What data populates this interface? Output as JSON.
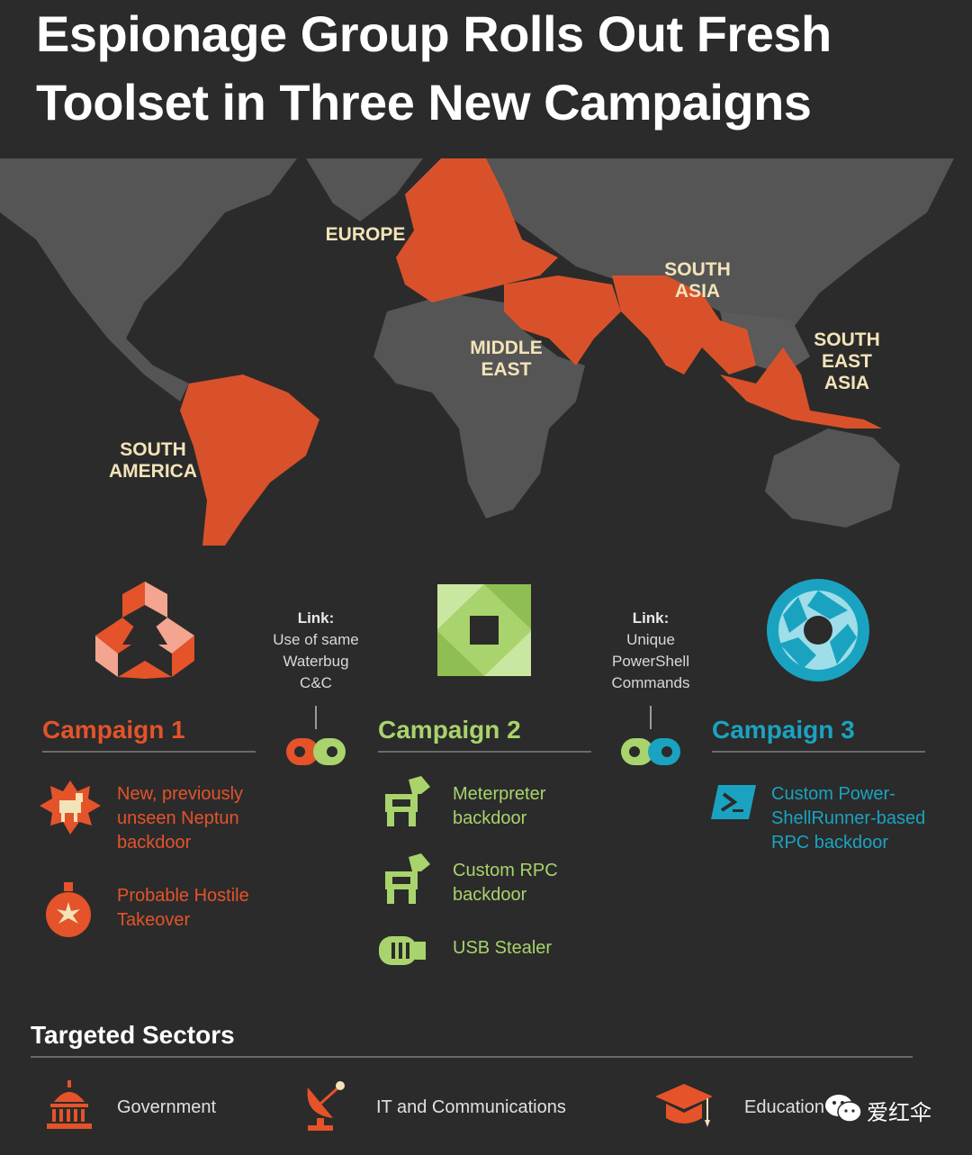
{
  "title_line1": "Espionage Group Rolls Out Fresh",
  "title_line2": "Toolset in Three New Campaigns",
  "regions": {
    "europe": "EUROPE",
    "south_asia_1": "SOUTH",
    "south_asia_2": "ASIA",
    "middle_east_1": "MIDDLE",
    "middle_east_2": "EAST",
    "se_asia_1": "SOUTH",
    "se_asia_2": "EAST",
    "se_asia_3": "ASIA",
    "south_america_1": "SOUTH",
    "south_america_2": "AMERICA"
  },
  "links": [
    {
      "heading": "Link:",
      "lines": [
        "Use of same",
        "Waterbug",
        "C&C"
      ]
    },
    {
      "heading": "Link:",
      "lines": [
        "Unique",
        "PowerShell",
        "Commands"
      ]
    }
  ],
  "campaigns": [
    {
      "title": "Campaign 1",
      "items": [
        {
          "lines": [
            "New, previously",
            "unseen Neptun",
            "backdoor"
          ],
          "icon": "trojan-horse-icon"
        },
        {
          "lines": [
            "Probable Hostile",
            "Takeover"
          ],
          "icon": "bomb-icon"
        }
      ]
    },
    {
      "title": "Campaign 2",
      "items": [
        {
          "lines": [
            "Meterpreter",
            "backdoor"
          ],
          "icon": "trojan-horse-icon"
        },
        {
          "lines": [
            "Custom RPC",
            "backdoor"
          ],
          "icon": "trojan-horse-icon"
        },
        {
          "lines": [
            "USB Stealer"
          ],
          "icon": "usb-icon"
        }
      ]
    },
    {
      "title": "Campaign 3",
      "items": [
        {
          "lines": [
            "Custom Power-",
            "ShellRunner-based",
            "RPC backdoor"
          ],
          "icon": "powershell-icon"
        }
      ]
    }
  ],
  "sectors_title": "Targeted Sectors",
  "sectors": [
    "Government",
    "IT and Communications",
    "Education"
  ],
  "watermark": "爱红伞",
  "colors": {
    "background": "#2b2b2b",
    "land": "#555555",
    "targeted": "#d9512a",
    "campaign1": "#e4532a",
    "campaign2": "#a9d36c",
    "campaign3": "#1aa3c0",
    "region_label": "#f3e3b8"
  }
}
